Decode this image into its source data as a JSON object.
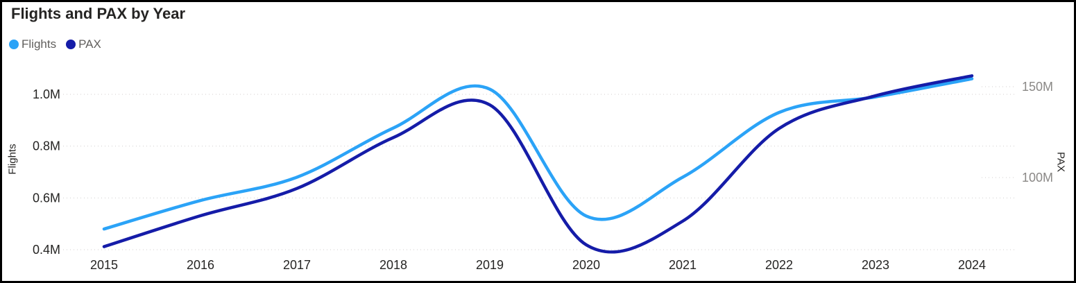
{
  "chart": {
    "title": "Flights and PAX by Year",
    "legend": [
      {
        "label": "Flights",
        "color": "#2BA3F7"
      },
      {
        "label": "PAX",
        "color": "#151CA8"
      }
    ],
    "left_axis_title": "Flights",
    "right_axis_title": "PAX"
  },
  "chart_data": {
    "type": "line",
    "smooth": true,
    "title": "Flights and PAX by Year",
    "legend_position": "top-left",
    "grid": "dotted-horizontal",
    "categories": [
      "2015",
      "2016",
      "2017",
      "2018",
      "2019",
      "2020",
      "2021",
      "2022",
      "2023",
      "2024"
    ],
    "series": [
      {
        "name": "Flights",
        "axis": "left",
        "color": "#2BA3F7",
        "unit": "M",
        "values": [
          0.48,
          0.59,
          0.68,
          0.87,
          1.02,
          0.53,
          0.68,
          0.93,
          0.99,
          1.06
        ]
      },
      {
        "name": "PAX",
        "axis": "right",
        "color": "#151CA8",
        "unit": "M",
        "values": [
          62,
          79,
          94,
          122,
          140,
          63,
          76,
          127,
          145,
          156
        ]
      }
    ],
    "left_axis": {
      "title": "Flights",
      "tick_values": [
        0.4,
        0.6,
        0.8,
        1.0
      ],
      "tick_labels": [
        "0.4M",
        "0.6M",
        "0.8M",
        "1.0M"
      ],
      "label_color": "#252423"
    },
    "right_axis": {
      "title": "PAX",
      "tick_values": [
        100,
        150
      ],
      "tick_labels": [
        "100M",
        "150M"
      ],
      "label_color": "#8A8886"
    },
    "gridline_color": "#D0CECE"
  }
}
